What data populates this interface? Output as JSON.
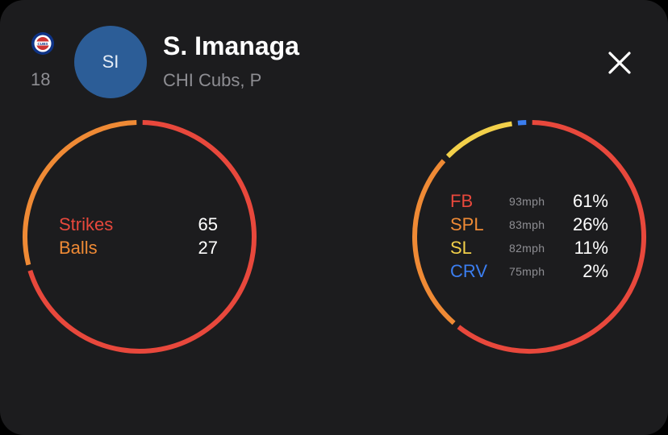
{
  "colors": {
    "background": "#1c1c1e",
    "strikes": "#e8483c",
    "balls": "#ef8a35",
    "fb": "#e8483c",
    "spl": "#ef8a35",
    "sl": "#f2d04a",
    "crv": "#3b7ef0",
    "avatar": "#2c5d97",
    "muted": "#8e8e93"
  },
  "player": {
    "team_icon": "cubs-logo",
    "number": "18",
    "initials": "SI",
    "name": "S. Imanaga",
    "team_position": "CHI Cubs, P"
  },
  "close_icon": "close-x",
  "strike_ball": {
    "strikes_label": "Strikes",
    "strikes_value": "65",
    "balls_label": "Balls",
    "balls_value": "27",
    "strikes": 65,
    "balls": 27
  },
  "pitch_mix": [
    {
      "name": "FB",
      "speed": "93mph",
      "pct_label": "61%",
      "pct": 61,
      "color": "#e8483c"
    },
    {
      "name": "SPL",
      "speed": "83mph",
      "pct_label": "26%",
      "pct": 26,
      "color": "#ef8a35"
    },
    {
      "name": "SL",
      "speed": "82mph",
      "pct_label": "11%",
      "pct": 11,
      "color": "#f2d04a"
    },
    {
      "name": "CRV",
      "speed": "75mph",
      "pct_label": "2%",
      "pct": 2,
      "color": "#3b7ef0"
    }
  ]
}
